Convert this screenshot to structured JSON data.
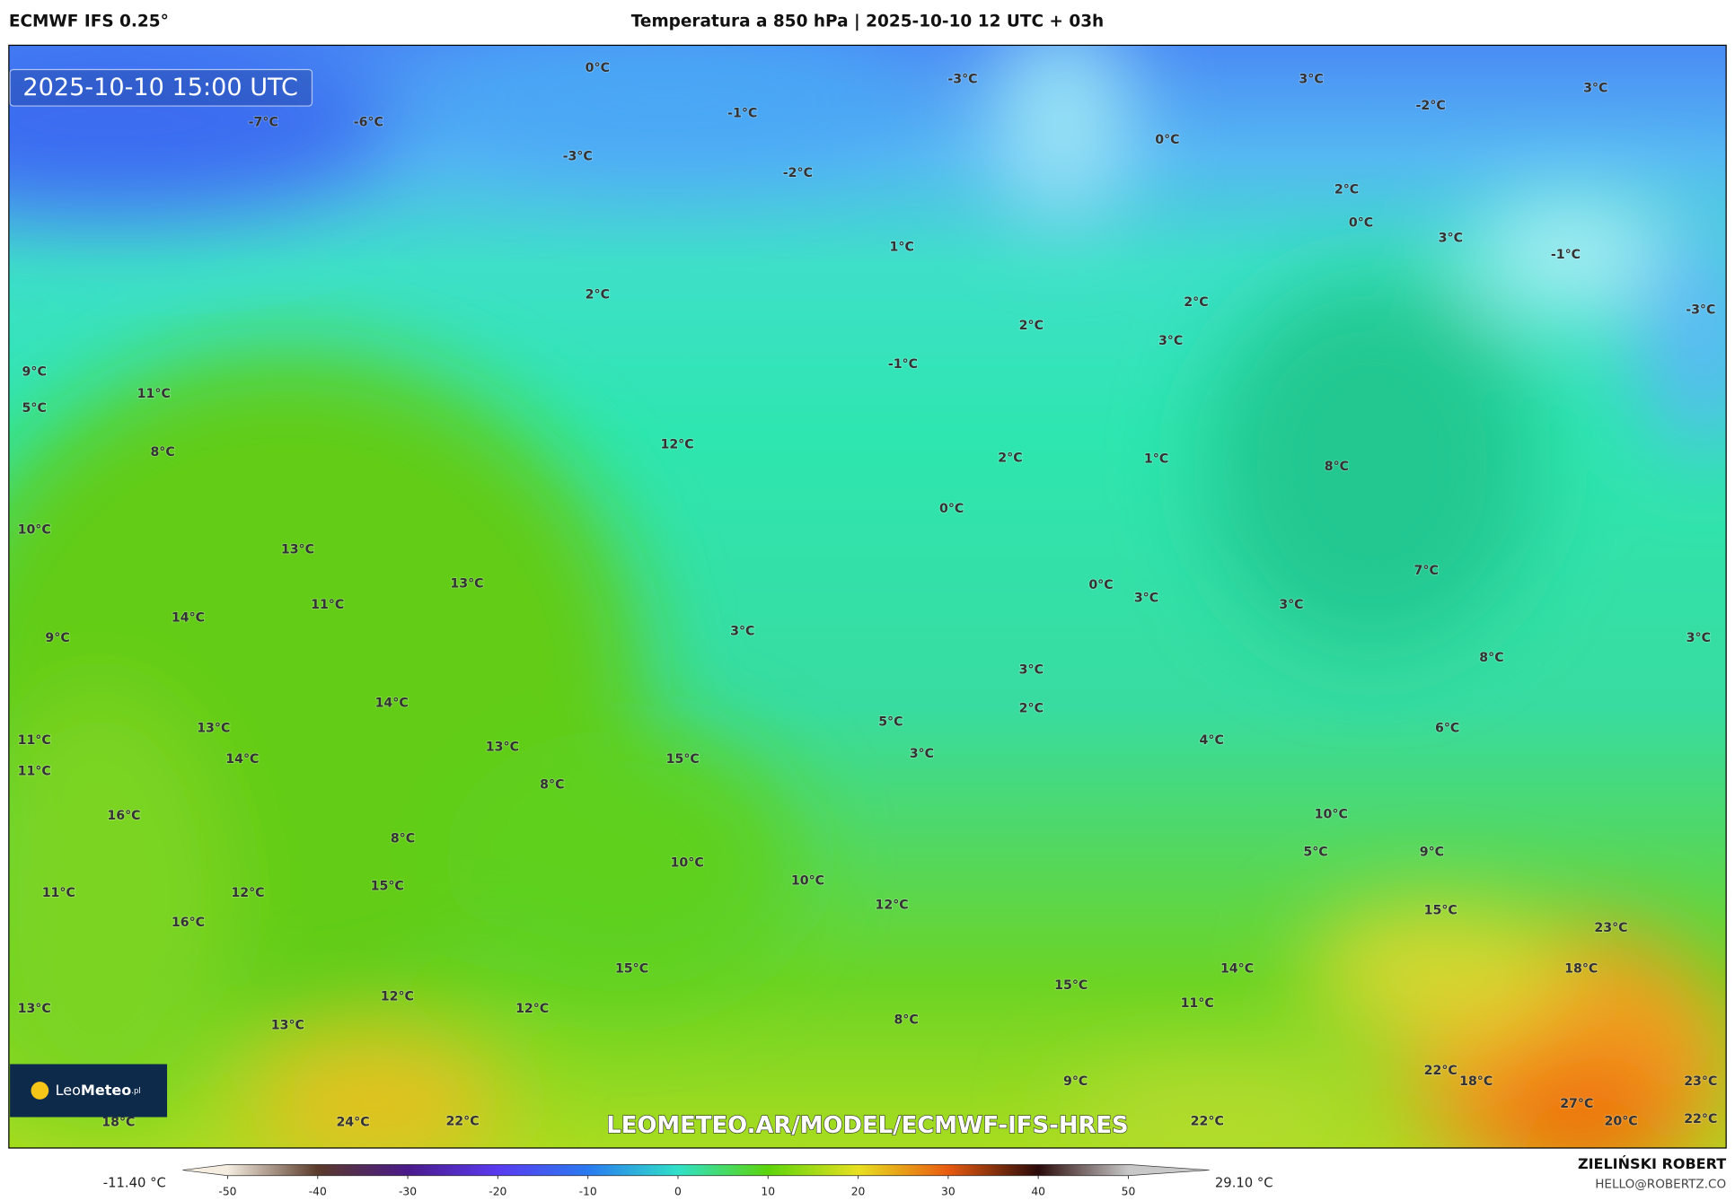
{
  "header": {
    "model": "ECMWF IFS 0.25°",
    "title": "Temperatura a 850 hPa | 2025-10-10 12 UTC + 03h"
  },
  "map": {
    "timestamp": "2025-10-10 15:00 UTC",
    "labels": [
      "0°C",
      "-3°C",
      "3°C",
      "3°C",
      "-2°C",
      "-7°C",
      "-6°C",
      "-1°C",
      "0°C",
      "-3°C",
      "-2°C",
      "2°C",
      "0°C",
      "3°C",
      "1°C",
      "-1°C",
      "2°C",
      "2°C",
      "-3°C",
      "2°C",
      "3°C",
      "-1°C",
      "9°C",
      "11°C",
      "5°C",
      "8°C",
      "12°C",
      "2°C",
      "1°C",
      "8°C",
      "0°C",
      "10°C",
      "13°C",
      "7°C",
      "13°C",
      "0°C",
      "3°C",
      "3°C",
      "11°C",
      "14°C",
      "3°C",
      "9°C",
      "3°C",
      "8°C",
      "3°C",
      "14°C",
      "2°C",
      "5°C",
      "13°C",
      "6°C",
      "11°C",
      "4°C",
      "13°C",
      "3°C",
      "15°C",
      "14°C",
      "11°C",
      "8°C",
      "16°C",
      "10°C",
      "8°C",
      "5°C",
      "9°C",
      "10°C",
      "15°C",
      "10°C",
      "11°C",
      "12°C",
      "12°C",
      "15°C",
      "16°C",
      "23°C",
      "15°C",
      "14°C",
      "18°C",
      "15°C",
      "12°C",
      "11°C",
      "13°C",
      "12°C",
      "8°C",
      "13°C",
      "22°C",
      "9°C",
      "18°C",
      "23°C",
      "27°C",
      "18°C",
      "24°C",
      "22°C",
      "22°C",
      "20°C",
      "22°C"
    ],
    "watermark": "LEOMETEO.AR/MODEL/ECMWF-IFS-HRES",
    "logo": {
      "leo": "Leo",
      "meteo": "Meteo",
      "suffix": ".pl"
    }
  },
  "colorbar": {
    "min_label": "-11.40 °C",
    "max_label": "29.10 °C",
    "xlim": [
      -55,
      59
    ],
    "ticks": [
      -50,
      -40,
      -30,
      -20,
      -10,
      0,
      10,
      20,
      30,
      40,
      50
    ],
    "colors": [
      "#f4ede0",
      "#5a3a2a",
      "#4a1a8a",
      "#5a3af0",
      "#2a7af0",
      "#30e0c8",
      "#5cd40a",
      "#e8e020",
      "#e85a10",
      "#2a0a0a",
      "#c8c8c8"
    ]
  },
  "footer": {
    "author": "ZIELIŃSKI ROBERT",
    "email": "HELLO@ROBERTZ.CO"
  }
}
